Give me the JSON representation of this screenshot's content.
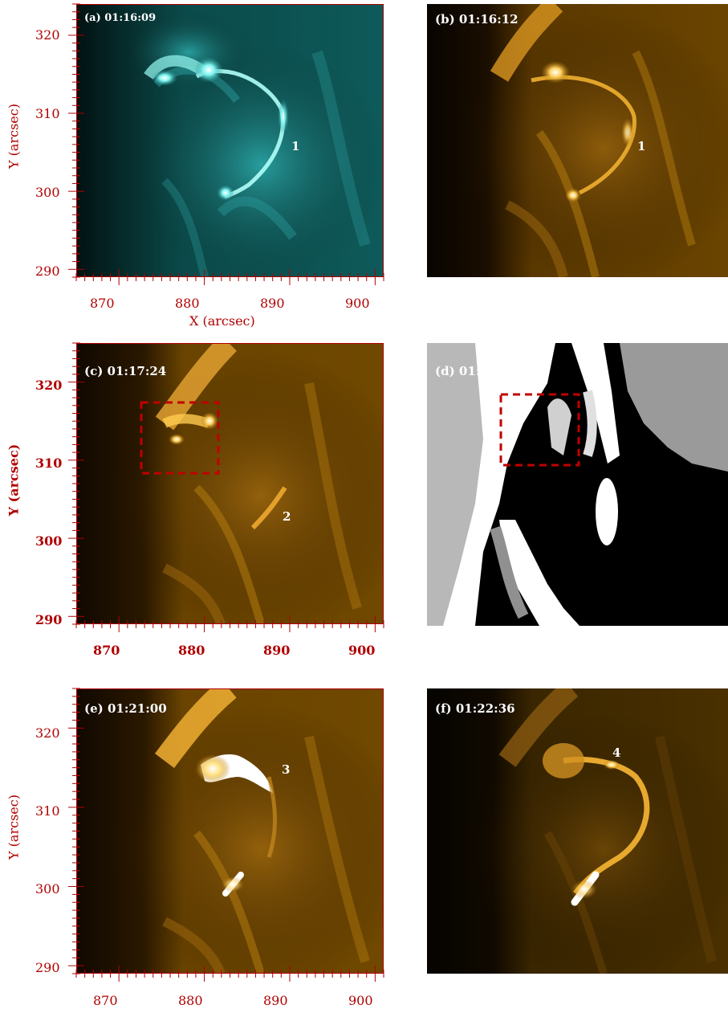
{
  "panels": {
    "a": {
      "label": "(a) 01:16:09",
      "feature": "1"
    },
    "b": {
      "label": "(b) 01:16:12",
      "feature": "1"
    },
    "c": {
      "label": "(c) 01:17:24",
      "feature": "2"
    },
    "d": {
      "label": "(d) 01:17:15"
    },
    "e": {
      "label": "(e) 01:21:00",
      "feature": "3"
    },
    "f": {
      "label": "(f) 01:22:36",
      "feature": "4"
    }
  },
  "axes": {
    "xlabel": "X (arcsec)",
    "ylabel": "Y (arcsec)",
    "xticks": [
      "870",
      "880",
      "890",
      "900"
    ],
    "yticks": [
      "290",
      "300",
      "310",
      "320"
    ]
  },
  "colors": {
    "teal": "#1fc8c8",
    "orange": "#e89a10",
    "axis": "#b00000",
    "box": "#c00000"
  }
}
